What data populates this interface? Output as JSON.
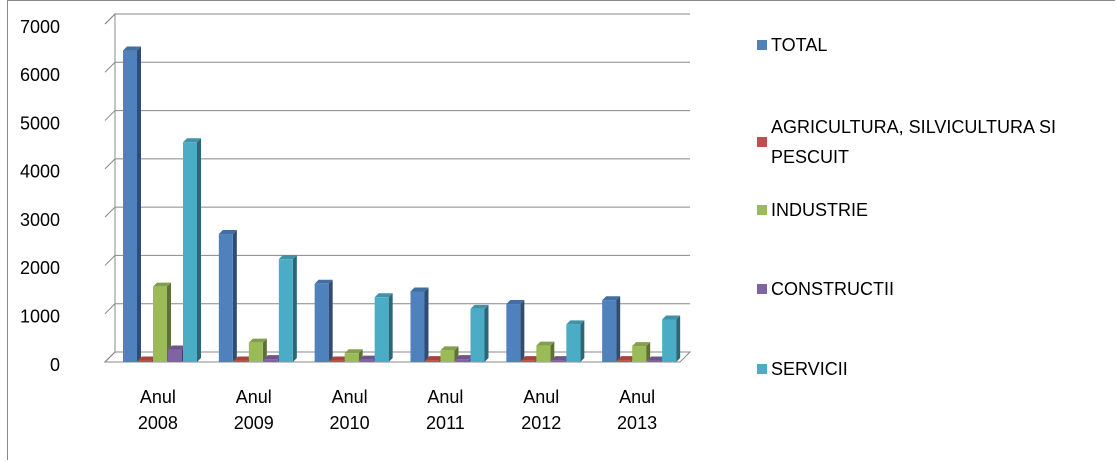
{
  "chart_data": {
    "type": "bar3d",
    "categories": [
      "Anul 2008",
      "Anul 2009",
      "Anul 2010",
      "Anul 2011",
      "Anul 2012",
      "Anul 2013"
    ],
    "series": [
      {
        "name": "TOTAL",
        "color": "#4f81bd",
        "values": [
          6450,
          2650,
          1620,
          1460,
          1200,
          1280
        ]
      },
      {
        "name": "AGRICULTURA, SILVICULTURA SI PESCUIT",
        "color": "#c0504d",
        "values": [
          30,
          30,
          30,
          40,
          40,
          40
        ]
      },
      {
        "name": "INDUSTRIE",
        "color": "#9bbb59",
        "values": [
          1560,
          400,
          180,
          240,
          340,
          330
        ]
      },
      {
        "name": "CONSTRUCTII",
        "color": "#8064a2",
        "values": [
          260,
          60,
          50,
          60,
          40,
          30
        ]
      },
      {
        "name": "SERVICII",
        "color": "#4bacc6",
        "values": [
          4550,
          2130,
          1340,
          1100,
          780,
          880
        ]
      }
    ],
    "ylim": [
      0,
      7000
    ],
    "yticks": [
      0,
      1000,
      2000,
      3000,
      4000,
      5000,
      6000,
      7000
    ],
    "grid": true,
    "legend": "right"
  }
}
